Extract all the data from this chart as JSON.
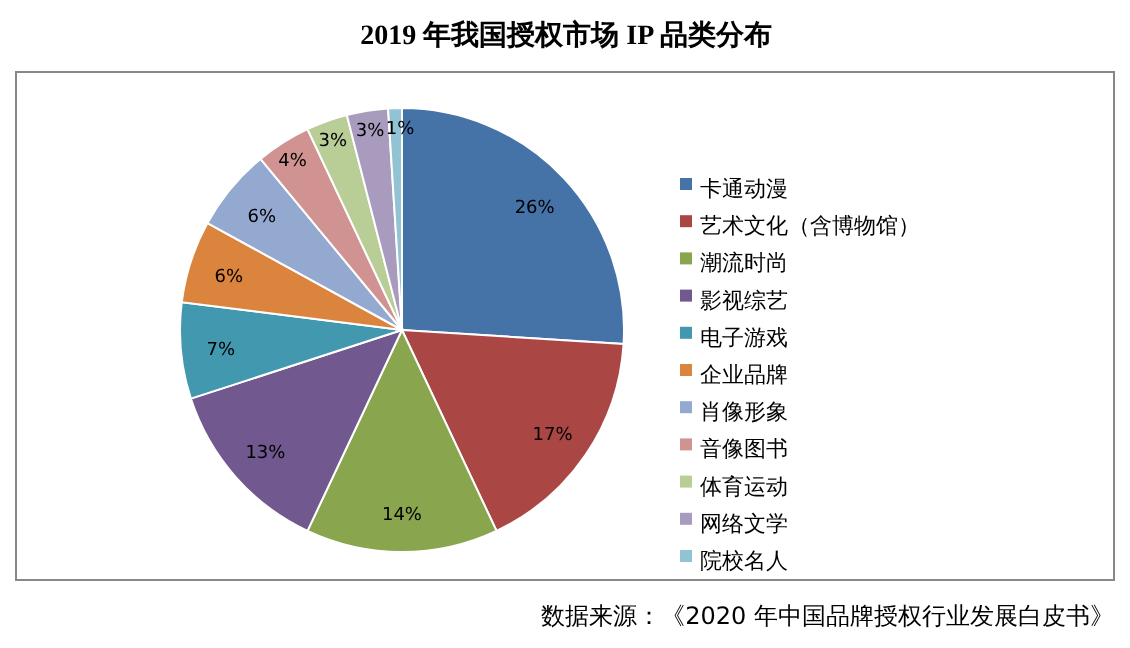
{
  "chart_data": {
    "type": "pie",
    "title": "2019 年我国授权市场 IP 品类分布",
    "categories": [
      "卡通动漫",
      "艺术文化（含博物馆）",
      "潮流时尚",
      "影视综艺",
      "电子游戏",
      "企业品牌",
      "肖像形象",
      "音像图书",
      "体育运动",
      "网络文学",
      "院校名人"
    ],
    "values": [
      26,
      17,
      14,
      13,
      7,
      6,
      6,
      4,
      3,
      3,
      1
    ],
    "colors": [
      "#4572a7",
      "#aa4643",
      "#89a54e",
      "#71588f",
      "#4198af",
      "#db843d",
      "#93a9cf",
      "#d19392",
      "#b9cd96",
      "#a99bbd",
      "#91c3d5"
    ],
    "value_labels": [
      "26%",
      "17%",
      "14%",
      "13%",
      "7%",
      "6%",
      "6%",
      "4%",
      "3%",
      "3%",
      "1%"
    ],
    "legend": "right",
    "annotations": [
      "数据来源：《2020 年中国品牌授权行业发展白皮书》"
    ]
  }
}
